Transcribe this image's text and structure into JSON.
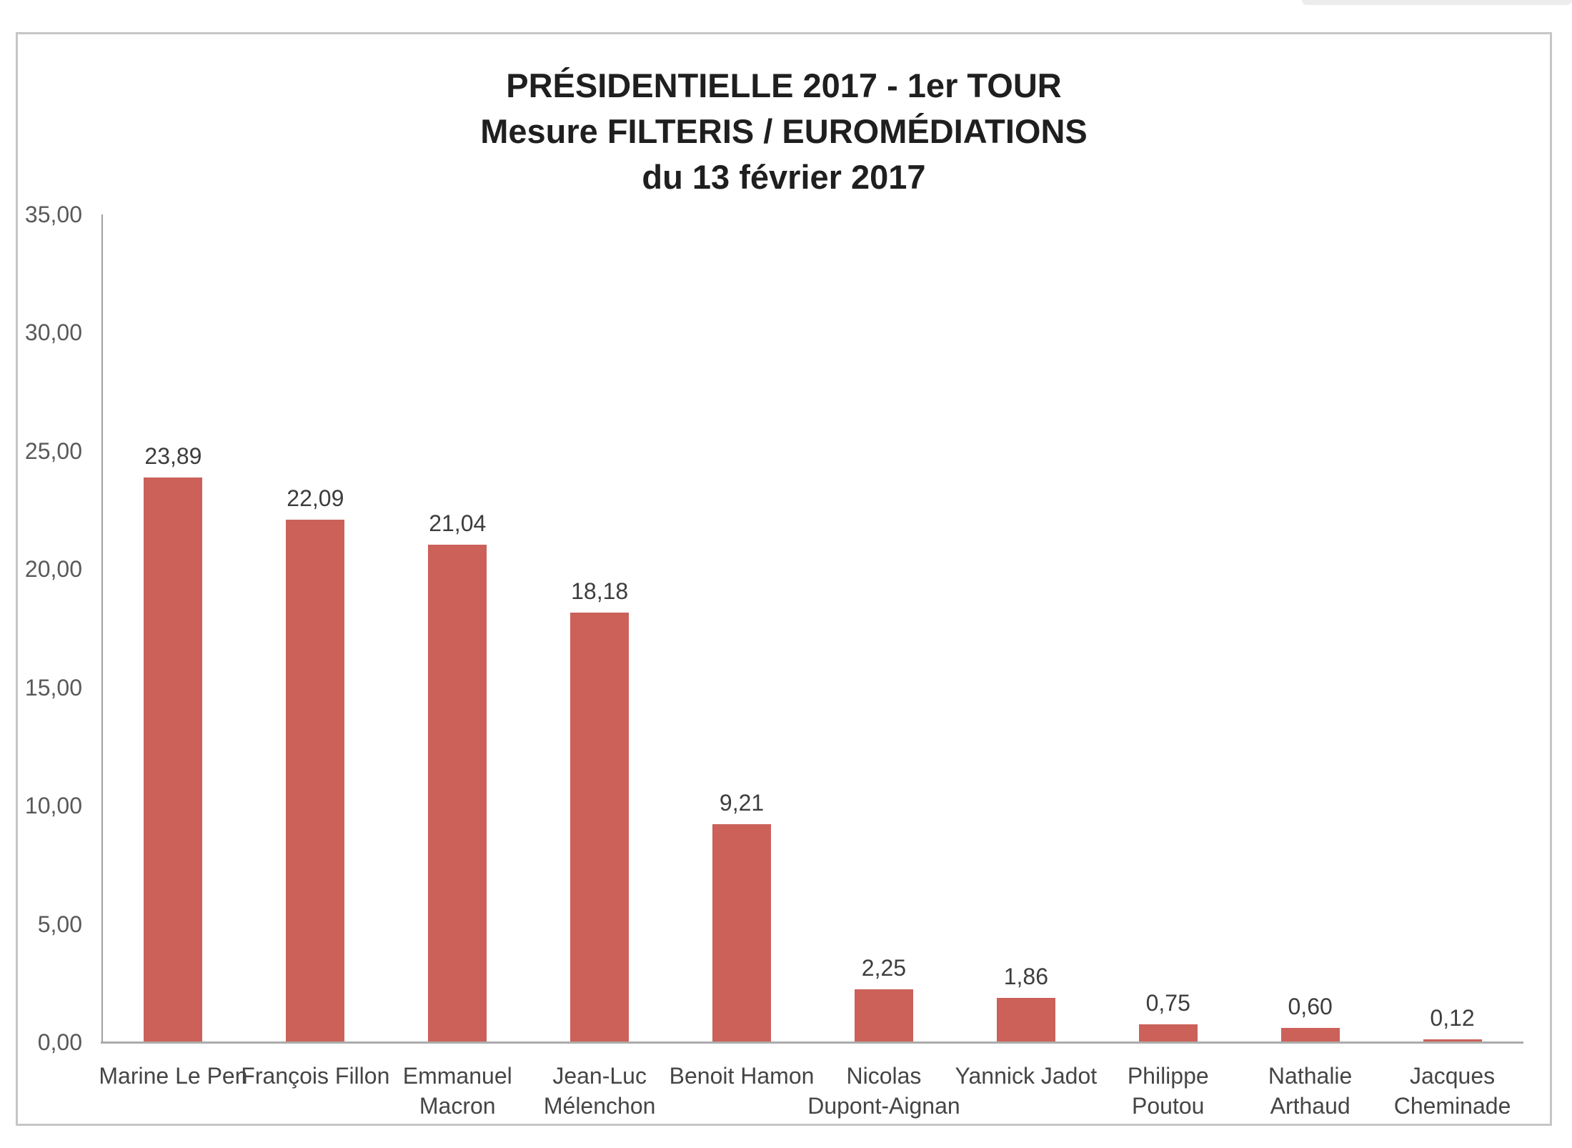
{
  "chart_data": {
    "type": "bar",
    "title": "PRÉSIDENTIELLE 2017 - 1er TOUR Mesure FILTERIS / EUROMÉDIATIONS du 13 février 2017",
    "title_lines": [
      "PRÉSIDENTIELLE 2017 - 1er TOUR",
      "Mesure FILTERIS / EUROMÉDIATIONS",
      "du 13 février 2017"
    ],
    "categories": [
      "Marine Le Pen",
      "François Fillon",
      "Emmanuel Macron",
      "Jean-Luc Mélenchon",
      "Benoit Hamon",
      "Nicolas Dupont-Aignan",
      "Yannick Jadot",
      "Philippe Poutou",
      "Nathalie Arthaud",
      "Jacques Cheminade"
    ],
    "category_label_lines": [
      [
        "Marine Le Pen"
      ],
      [
        "François Fillon"
      ],
      [
        "Emmanuel",
        "Macron"
      ],
      [
        "Jean-Luc",
        "Mélenchon"
      ],
      [
        "Benoit Hamon"
      ],
      [
        "Nicolas",
        "Dupont-Aignan"
      ],
      [
        "Yannick Jadot"
      ],
      [
        "Philippe Poutou"
      ],
      [
        "Nathalie",
        "Arthaud"
      ],
      [
        "Jacques",
        "Cheminade"
      ]
    ],
    "values": [
      23.89,
      22.09,
      21.04,
      18.18,
      9.21,
      2.25,
      1.86,
      0.75,
      0.6,
      0.12
    ],
    "value_labels": [
      "23,89",
      "22,09",
      "21,04",
      "18,18",
      "9,21",
      "2,25",
      "1,86",
      "0,75",
      "0,60",
      "0,12"
    ],
    "xlabel": "",
    "ylabel": "",
    "ylim": [
      0,
      35
    ],
    "ytick_step": 5,
    "ytick_labels": [
      "0,00",
      "5,00",
      "10,00",
      "15,00",
      "20,00",
      "25,00",
      "30,00",
      "35,00"
    ],
    "grid": false,
    "legend": false,
    "bar_color": "#cb6159",
    "axis_line_color": "#9f9f9f",
    "baseline_color": "#ababab",
    "frame_border_color": "#c6c6c6",
    "title_color": "#1f1f1f",
    "tick_label_color": "#595959",
    "value_label_color": "#3d3d3d",
    "category_label_color": "#454545"
  }
}
